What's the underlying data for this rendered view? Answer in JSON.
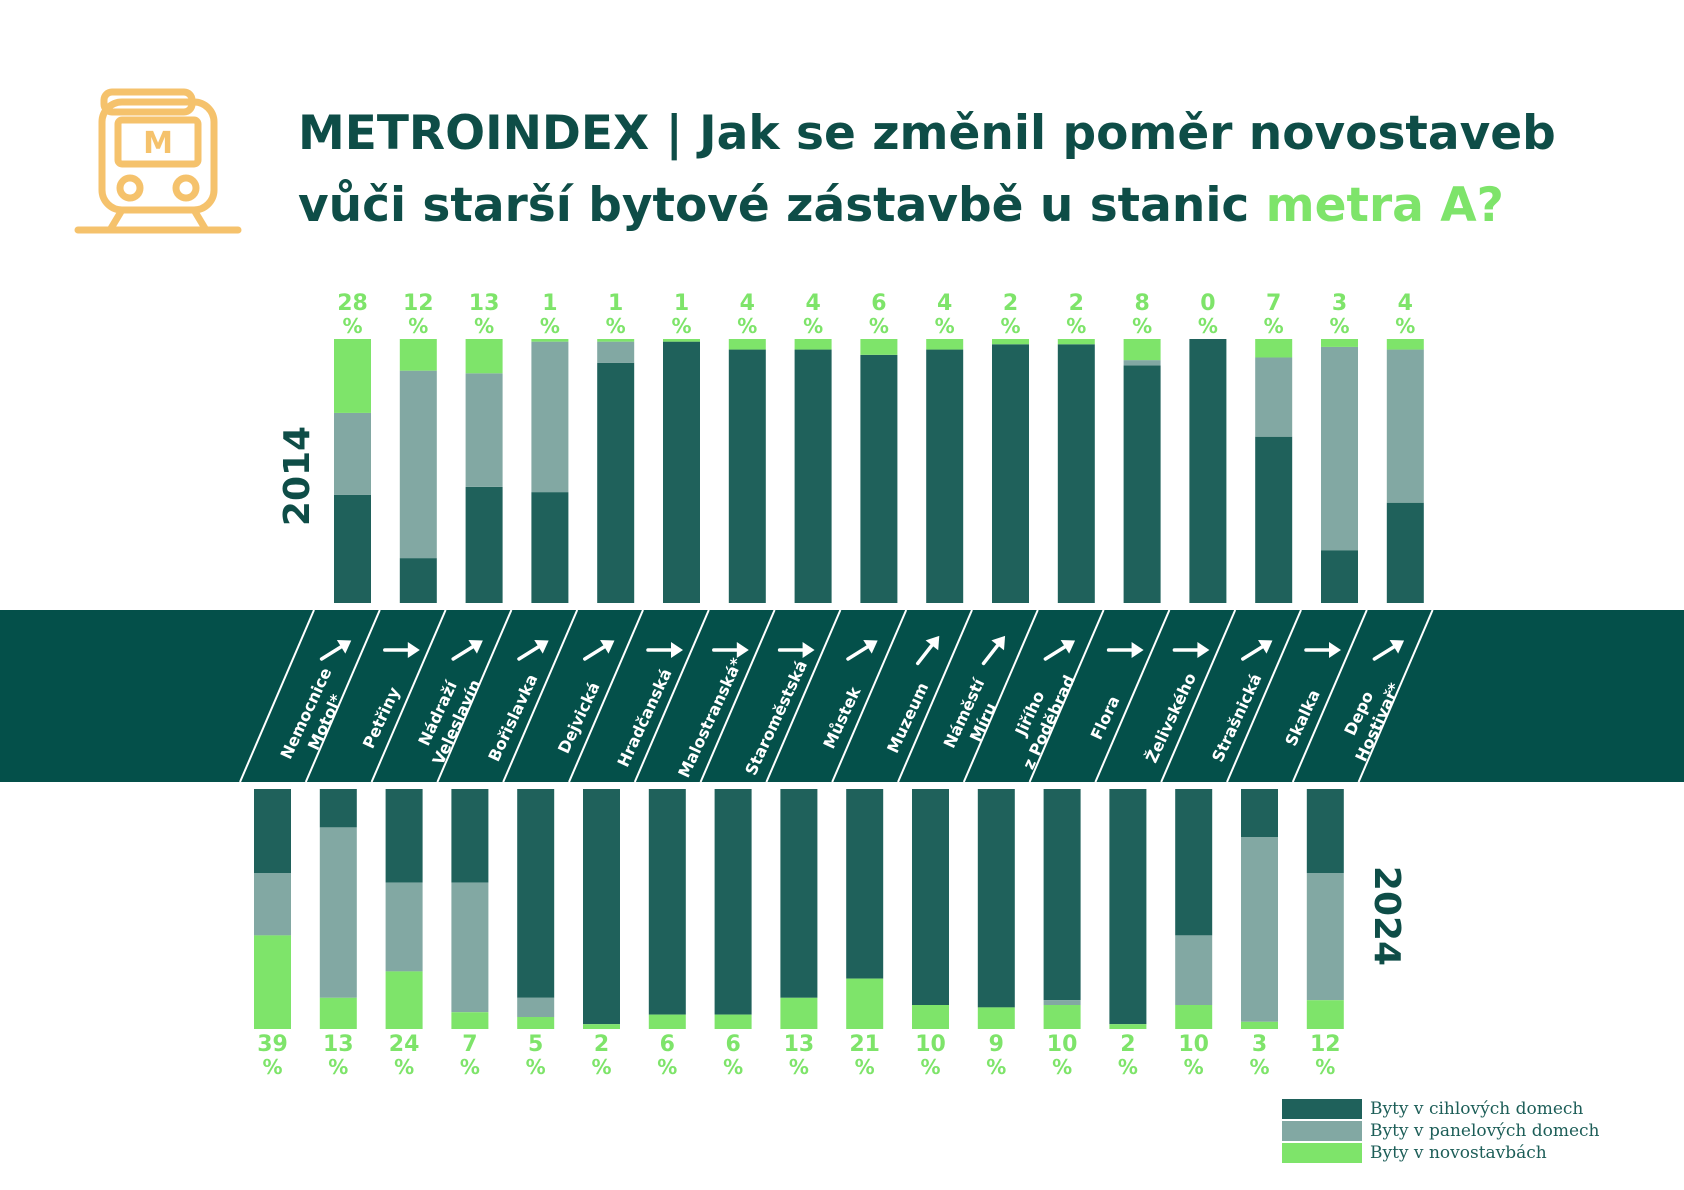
{
  "title": {
    "line1": "METROINDEX | Jak se změnil poměr novostaveb",
    "line2_prefix": "vůči starší bytové zástavbě u stanic ",
    "line2_accent": "metra A?"
  },
  "icons": {
    "logo": "metro-train-icon"
  },
  "colors": {
    "brick": "#1f615b",
    "panel": "#82a8a3",
    "new": "#7ee46a",
    "band": "#04504a",
    "title": "#0e4d47",
    "pct_label": "#7ee46a"
  },
  "legend": [
    {
      "key": "brick",
      "label": "Byty v cihlových domech"
    },
    {
      "key": "panel",
      "label": "Byty v panelových domech"
    },
    {
      "key": "new",
      "label": "Byty v novostavbách"
    }
  ],
  "chart_data": {
    "type": "bar",
    "stacked": true,
    "unit": "%",
    "series_names": [
      "Byty v cihlových domech",
      "Byty v panelových domech",
      "Byty v novostavbách"
    ],
    "panels": [
      {
        "year_label": "2014",
        "year": "2014"
      },
      {
        "year_label": "2024",
        "year": "2024"
      }
    ],
    "stations": [
      {
        "name": [
          "Nemocnice",
          "Motol*"
        ],
        "arrow": "up-right",
        "y2014": {
          "brick": 41,
          "panel": 31,
          "new": 28
        },
        "y2024": {
          "brick": 35,
          "panel": 26,
          "new": 39
        }
      },
      {
        "name": [
          "Petřiny"
        ],
        "arrow": "right",
        "y2014": {
          "brick": 17,
          "panel": 71,
          "new": 12
        },
        "y2024": {
          "brick": 16,
          "panel": 71,
          "new": 13
        }
      },
      {
        "name": [
          "Nádraží",
          "Veleslavín"
        ],
        "arrow": "up-right",
        "y2014": {
          "brick": 44,
          "panel": 43,
          "new": 13
        },
        "y2024": {
          "brick": 39,
          "panel": 37,
          "new": 24
        }
      },
      {
        "name": [
          "Bořislavka"
        ],
        "arrow": "up-right",
        "y2014": {
          "brick": 42,
          "panel": 57,
          "new": 1
        },
        "y2024": {
          "brick": 39,
          "panel": 54,
          "new": 7
        }
      },
      {
        "name": [
          "Dejvická"
        ],
        "arrow": "up-right",
        "y2014": {
          "brick": 91,
          "panel": 8,
          "new": 1
        },
        "y2024": {
          "brick": 87,
          "panel": 8,
          "new": 5
        }
      },
      {
        "name": [
          "Hradčanská"
        ],
        "arrow": "right",
        "y2014": {
          "brick": 99,
          "panel": 0,
          "new": 1
        },
        "y2024": {
          "brick": 98,
          "panel": 0,
          "new": 2
        }
      },
      {
        "name": [
          "Malostranská*"
        ],
        "arrow": "right",
        "y2014": {
          "brick": 96,
          "panel": 0,
          "new": 4
        },
        "y2024": {
          "brick": 94,
          "panel": 0,
          "new": 6
        }
      },
      {
        "name": [
          "Staroměstská"
        ],
        "arrow": "right",
        "y2014": {
          "brick": 96,
          "panel": 0,
          "new": 4
        },
        "y2024": {
          "brick": 94,
          "panel": 0,
          "new": 6
        }
      },
      {
        "name": [
          "Můstek"
        ],
        "arrow": "up-right",
        "y2014": {
          "brick": 94,
          "panel": 0,
          "new": 6
        },
        "y2024": {
          "brick": 87,
          "panel": 0,
          "new": 13
        }
      },
      {
        "name": [
          "Muzeum"
        ],
        "arrow": "up-right-steep",
        "y2014": {
          "brick": 96,
          "panel": 0,
          "new": 4
        },
        "y2024": {
          "brick": 79,
          "panel": 0,
          "new": 21
        }
      },
      {
        "name": [
          "Náměstí",
          "Míru"
        ],
        "arrow": "up-right-steep",
        "y2014": {
          "brick": 98,
          "panel": 0,
          "new": 2
        },
        "y2024": {
          "brick": 90,
          "panel": 0,
          "new": 10
        }
      },
      {
        "name": [
          "Jiřího",
          "z Poděbrad"
        ],
        "arrow": "up-right",
        "y2014": {
          "brick": 98,
          "panel": 0,
          "new": 2
        },
        "y2024": {
          "brick": 91,
          "panel": 0,
          "new": 9
        }
      },
      {
        "name": [
          "Flora"
        ],
        "arrow": "right",
        "y2014": {
          "brick": 90,
          "panel": 2,
          "new": 8
        },
        "y2024": {
          "brick": 88,
          "panel": 2,
          "new": 10
        }
      },
      {
        "name": [
          "Želivského"
        ],
        "arrow": "right",
        "y2014": {
          "brick": 100,
          "panel": 0,
          "new": 0
        },
        "y2024": {
          "brick": 98,
          "panel": 0,
          "new": 2
        }
      },
      {
        "name": [
          "Strašnická"
        ],
        "arrow": "up-right",
        "y2014": {
          "brick": 63,
          "panel": 30,
          "new": 7
        },
        "y2024": {
          "brick": 61,
          "panel": 29,
          "new": 10
        }
      },
      {
        "name": [
          "Skalka"
        ],
        "arrow": "right",
        "y2014": {
          "brick": 20,
          "panel": 77,
          "new": 3
        },
        "y2024": {
          "brick": 20,
          "panel": 77,
          "new": 3
        }
      },
      {
        "name": [
          "Depo",
          "Hostivař*"
        ],
        "arrow": "up-right",
        "y2014": {
          "brick": 38,
          "panel": 58,
          "new": 4
        },
        "y2024": {
          "brick": 35,
          "panel": 53,
          "new": 12
        }
      }
    ]
  }
}
